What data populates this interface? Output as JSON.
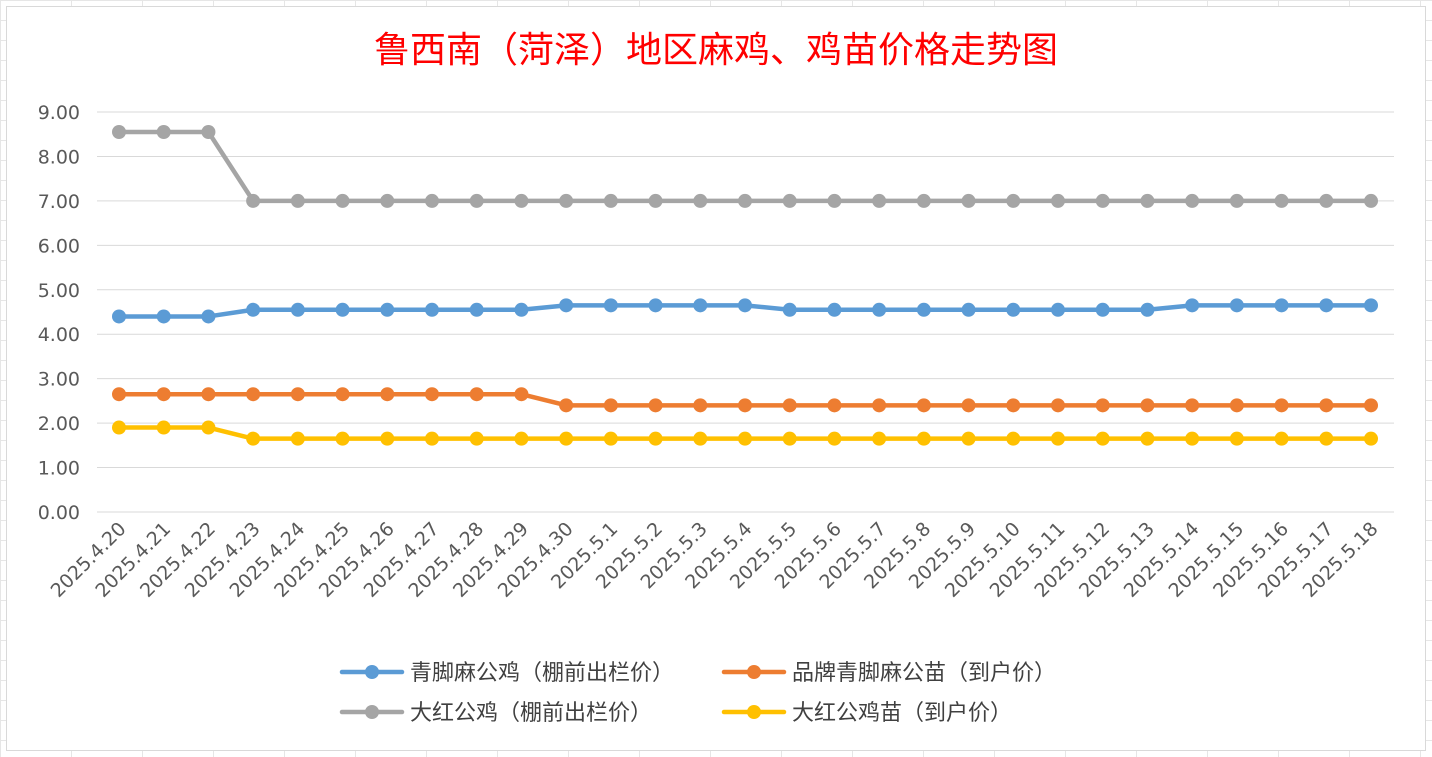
{
  "chart_data": {
    "type": "line",
    "title": "鲁西南（菏泽）地区麻鸡、鸡苗价格走势图",
    "xlabel": "",
    "ylabel": "",
    "ylim": [
      0,
      9
    ],
    "y_ticks": [
      "0.00",
      "1.00",
      "2.00",
      "3.00",
      "4.00",
      "5.00",
      "6.00",
      "7.00",
      "8.00",
      "9.00"
    ],
    "grid": "horizontal",
    "legend_position": "bottom",
    "categories": [
      "2025.4.20",
      "2025.4.21",
      "2025.4.22",
      "2025.4.23",
      "2025.4.24",
      "2025.4.25",
      "2025.4.26",
      "2025.4.27",
      "2025.4.28",
      "2025.4.29",
      "2025.4.30",
      "2025.5.1",
      "2025.5.2",
      "2025.5.3",
      "2025.5.4",
      "2025.5.5",
      "2025.5.6",
      "2025.5.7",
      "2025.5.8",
      "2025.5.9",
      "2025.5.10",
      "2025.5.11",
      "2025.5.12",
      "2025.5.13",
      "2025.5.14",
      "2025.5.15",
      "2025.5.16",
      "2025.5.17",
      "2025.5.18"
    ],
    "series": [
      {
        "name": "青脚麻公鸡（棚前出栏价）",
        "color": "#5b9bd5",
        "values": [
          4.4,
          4.4,
          4.4,
          4.55,
          4.55,
          4.55,
          4.55,
          4.55,
          4.55,
          4.55,
          4.65,
          4.65,
          4.65,
          4.65,
          4.65,
          4.55,
          4.55,
          4.55,
          4.55,
          4.55,
          4.55,
          4.55,
          4.55,
          4.55,
          4.65,
          4.65,
          4.65,
          4.65,
          4.65
        ]
      },
      {
        "name": "品牌青脚麻公苗（到户价）",
        "color": "#ed7d31",
        "values": [
          2.65,
          2.65,
          2.65,
          2.65,
          2.65,
          2.65,
          2.65,
          2.65,
          2.65,
          2.65,
          2.4,
          2.4,
          2.4,
          2.4,
          2.4,
          2.4,
          2.4,
          2.4,
          2.4,
          2.4,
          2.4,
          2.4,
          2.4,
          2.4,
          2.4,
          2.4,
          2.4,
          2.4,
          2.4
        ]
      },
      {
        "name": "大红公鸡（棚前出栏价）",
        "color": "#a5a5a5",
        "values": [
          8.55,
          8.55,
          8.55,
          7.0,
          7.0,
          7.0,
          7.0,
          7.0,
          7.0,
          7.0,
          7.0,
          7.0,
          7.0,
          7.0,
          7.0,
          7.0,
          7.0,
          7.0,
          7.0,
          7.0,
          7.0,
          7.0,
          7.0,
          7.0,
          7.0,
          7.0,
          7.0,
          7.0,
          7.0
        ]
      },
      {
        "name": "大红公鸡苗（到户价）",
        "color": "#ffc000",
        "values": [
          1.9,
          1.9,
          1.9,
          1.65,
          1.65,
          1.65,
          1.65,
          1.65,
          1.65,
          1.65,
          1.65,
          1.65,
          1.65,
          1.65,
          1.65,
          1.65,
          1.65,
          1.65,
          1.65,
          1.65,
          1.65,
          1.65,
          1.65,
          1.65,
          1.65,
          1.65,
          1.65,
          1.65,
          1.65
        ]
      }
    ]
  }
}
